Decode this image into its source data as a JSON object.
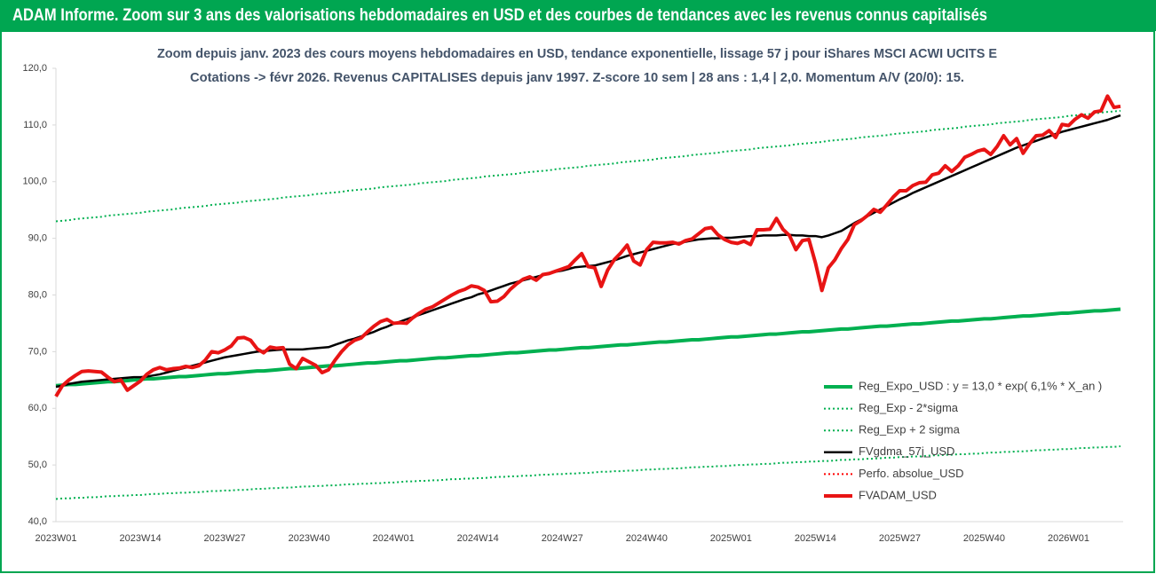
{
  "chart_data": {
    "type": "line",
    "title": "ADAM Informe. Zoom sur 3 ans des valorisations hebdomadaires en USD et des courbes de tendances avec les revenus connus capitalisés",
    "subtitle": [
      "Zoom depuis janv. 2023 des cours moyens hebdomadaires en USD, tendance exponentielle, lissage 57 j pour iShares MSCI ACWI UCITS E",
      "Cotations -> févr 2026. Revenus CAPITALISES depuis janv 1997. Z-score 10 sem | 28 ans : 1,4 | 2,0. Momentum A/V (20/0): 15."
    ],
    "categories": [
      "2023W01",
      null,
      null,
      null,
      null,
      null,
      null,
      null,
      null,
      null,
      null,
      null,
      null,
      "2023W14",
      null,
      null,
      null,
      null,
      null,
      null,
      null,
      null,
      null,
      null,
      null,
      null,
      "2023W27",
      null,
      null,
      null,
      null,
      null,
      null,
      null,
      null,
      null,
      null,
      null,
      null,
      "2023W40",
      null,
      null,
      null,
      null,
      null,
      null,
      null,
      null,
      null,
      null,
      null,
      null,
      "2024W01",
      null,
      null,
      null,
      null,
      null,
      null,
      null,
      null,
      null,
      null,
      null,
      null,
      "2024W14",
      null,
      null,
      null,
      null,
      null,
      null,
      null,
      null,
      null,
      null,
      null,
      null,
      "2024W27",
      null,
      null,
      null,
      null,
      null,
      null,
      null,
      null,
      null,
      null,
      null,
      null,
      "2024W40",
      null,
      null,
      null,
      null,
      null,
      null,
      null,
      null,
      null,
      null,
      null,
      null,
      "2025W01",
      null,
      null,
      null,
      null,
      null,
      null,
      null,
      null,
      null,
      null,
      null,
      null,
      "2025W14",
      null,
      null,
      null,
      null,
      null,
      null,
      null,
      null,
      null,
      null,
      null,
      null,
      "2025W27",
      null,
      null,
      null,
      null,
      null,
      null,
      null,
      null,
      null,
      null,
      null,
      null,
      "2025W40",
      null,
      null,
      null,
      null,
      null,
      null,
      null,
      null,
      null,
      null,
      null,
      null,
      "2026W01",
      null,
      null,
      null,
      null,
      null,
      null,
      null,
      null
    ],
    "ylim": [
      40,
      120
    ],
    "yticks": [
      {
        "value": 40,
        "label": "40,0"
      },
      {
        "value": 50,
        "label": "50,0"
      },
      {
        "value": 60,
        "label": "60,0"
      },
      {
        "value": 70,
        "label": "70,0"
      },
      {
        "value": 80,
        "label": "80,0"
      },
      {
        "value": 90,
        "label": "90,0"
      },
      {
        "value": 100,
        "label": "100,0"
      },
      {
        "value": 110,
        "label": "110,0"
      },
      {
        "value": 120,
        "label": "120,0"
      }
    ],
    "grid": false,
    "legend": "bottom-right",
    "series": [
      {
        "name": "Reg_Expo_USD : y = 13,0 * exp( 6,1% *  X_an )",
        "color": "#00b050",
        "style": "thick",
        "values": [
          64.0,
          64.1,
          64.2,
          64.2,
          64.3,
          64.4,
          64.5,
          64.6,
          64.7,
          64.7,
          64.8,
          64.9,
          65.0,
          65.1,
          65.2,
          65.2,
          65.3,
          65.4,
          65.5,
          65.6,
          65.6,
          65.7,
          65.8,
          65.9,
          66.0,
          66.1,
          66.1,
          66.2,
          66.3,
          66.4,
          66.5,
          66.6,
          66.6,
          66.7,
          66.8,
          66.9,
          67.0,
          67.0,
          67.1,
          67.2,
          67.3,
          67.4,
          67.5,
          67.5,
          67.6,
          67.7,
          67.8,
          67.9,
          68.0,
          68.0,
          68.1,
          68.2,
          68.3,
          68.4,
          68.4,
          68.5,
          68.6,
          68.7,
          68.8,
          68.9,
          68.9,
          69.0,
          69.1,
          69.2,
          69.3,
          69.3,
          69.4,
          69.5,
          69.6,
          69.7,
          69.8,
          69.8,
          69.9,
          70.0,
          70.1,
          70.2,
          70.3,
          70.3,
          70.4,
          70.5,
          70.6,
          70.7,
          70.7,
          70.8,
          70.9,
          71.0,
          71.1,
          71.2,
          71.2,
          71.3,
          71.4,
          71.5,
          71.6,
          71.7,
          71.7,
          71.8,
          71.9,
          72.0,
          72.1,
          72.1,
          72.2,
          72.3,
          72.4,
          72.5,
          72.6,
          72.6,
          72.7,
          72.8,
          72.9,
          73.0,
          73.1,
          73.1,
          73.2,
          73.3,
          73.4,
          73.5,
          73.5,
          73.6,
          73.7,
          73.8,
          73.9,
          74.0,
          74.0,
          74.1,
          74.2,
          74.3,
          74.4,
          74.5,
          74.5,
          74.6,
          74.7,
          74.8,
          74.9,
          74.9,
          75.0,
          75.1,
          75.2,
          75.3,
          75.4,
          75.4,
          75.5,
          75.6,
          75.7,
          75.8,
          75.8,
          75.9,
          76.0,
          76.1,
          76.2,
          76.3,
          76.3,
          76.4,
          76.5,
          76.6,
          76.7,
          76.8,
          76.8,
          76.9,
          77.0,
          77.1,
          77.2,
          77.2,
          77.3,
          77.4,
          77.5
        ]
      },
      {
        "name": "Reg_Exp - 2*sigma",
        "color": "#00b050",
        "style": "dotted",
        "values": [
          44.0,
          44.1,
          44.1,
          44.2,
          44.2,
          44.3,
          44.3,
          44.4,
          44.5,
          44.5,
          44.6,
          44.6,
          44.7,
          44.7,
          44.8,
          44.9,
          44.9,
          45.0,
          45.0,
          45.1,
          45.1,
          45.2,
          45.2,
          45.3,
          45.4,
          45.4,
          45.5,
          45.5,
          45.6,
          45.6,
          45.7,
          45.8,
          45.8,
          45.9,
          45.9,
          46.0,
          46.0,
          46.1,
          46.2,
          46.2,
          46.3,
          46.3,
          46.4,
          46.4,
          46.5,
          46.6,
          46.6,
          46.7,
          46.7,
          46.8,
          46.8,
          46.9,
          46.9,
          47.0,
          47.1,
          47.1,
          47.2,
          47.2,
          47.3,
          47.3,
          47.4,
          47.5,
          47.5,
          47.6,
          47.6,
          47.7,
          47.7,
          47.8,
          47.9,
          47.9,
          48.0,
          48.0,
          48.1,
          48.1,
          48.2,
          48.3,
          48.3,
          48.4,
          48.4,
          48.5,
          48.5,
          48.6,
          48.6,
          48.7,
          48.8,
          48.8,
          48.9,
          48.9,
          49.0,
          49.0,
          49.1,
          49.2,
          49.2,
          49.3,
          49.3,
          49.4,
          49.4,
          49.5,
          49.6,
          49.6,
          49.7,
          49.7,
          49.8,
          49.8,
          49.9,
          50.0,
          50.0,
          50.1,
          50.1,
          50.2,
          50.2,
          50.3,
          50.4,
          50.4,
          50.5,
          50.5,
          50.6,
          50.6,
          50.7,
          50.7,
          50.8,
          50.9,
          50.9,
          51.0,
          51.0,
          51.1,
          51.1,
          51.2,
          51.3,
          51.3,
          51.4,
          51.4,
          51.5,
          51.5,
          51.6,
          51.7,
          51.7,
          51.8,
          51.8,
          51.9,
          51.9,
          52.0,
          52.0,
          52.1,
          52.2,
          52.2,
          52.3,
          52.3,
          52.4,
          52.4,
          52.5,
          52.6,
          52.6,
          52.7,
          52.7,
          52.8,
          52.8,
          52.9,
          53.0,
          53.0,
          53.1,
          53.1,
          53.2,
          53.2,
          53.3
        ]
      },
      {
        "name": "Reg_Exp + 2 sigma",
        "color": "#00b050",
        "style": "dotted",
        "values": [
          93.0,
          93.1,
          93.2,
          93.4,
          93.5,
          93.6,
          93.7,
          93.8,
          94.0,
          94.1,
          94.2,
          94.3,
          94.4,
          94.5,
          94.7,
          94.8,
          94.9,
          95.0,
          95.1,
          95.3,
          95.4,
          95.5,
          95.6,
          95.7,
          95.9,
          96.0,
          96.1,
          96.2,
          96.3,
          96.5,
          96.6,
          96.7,
          96.8,
          96.9,
          97.0,
          97.2,
          97.3,
          97.4,
          97.5,
          97.6,
          97.8,
          97.9,
          98.0,
          98.1,
          98.2,
          98.4,
          98.5,
          98.6,
          98.7,
          98.8,
          99.0,
          99.1,
          99.2,
          99.3,
          99.4,
          99.5,
          99.7,
          99.8,
          99.9,
          100.0,
          100.1,
          100.3,
          100.4,
          100.5,
          100.6,
          100.7,
          100.9,
          101.0,
          101.1,
          101.2,
          101.3,
          101.4,
          101.6,
          101.7,
          101.8,
          101.9,
          102.0,
          102.2,
          102.3,
          102.4,
          102.5,
          102.6,
          102.8,
          102.9,
          103.0,
          103.1,
          103.2,
          103.4,
          103.5,
          103.6,
          103.7,
          103.8,
          103.9,
          104.1,
          104.2,
          104.3,
          104.4,
          104.5,
          104.7,
          104.8,
          104.9,
          105.0,
          105.1,
          105.3,
          105.4,
          105.5,
          105.6,
          105.7,
          105.9,
          106.0,
          106.1,
          106.2,
          106.3,
          106.4,
          106.6,
          106.7,
          106.8,
          106.9,
          107.0,
          107.2,
          107.3,
          107.4,
          107.5,
          107.6,
          107.8,
          107.9,
          108.0,
          108.1,
          108.2,
          108.4,
          108.5,
          108.6,
          108.7,
          108.8,
          108.9,
          109.1,
          109.2,
          109.3,
          109.4,
          109.5,
          109.7,
          109.8,
          109.9,
          110.0,
          110.1,
          110.3,
          110.4,
          110.5,
          110.6,
          110.7,
          110.9,
          111.0,
          111.1,
          111.2,
          111.3,
          111.4,
          111.6,
          111.7,
          111.8,
          111.9,
          112.0,
          112.2,
          112.3,
          112.4,
          112.5
        ]
      },
      {
        "name": "FVgdma_57j_USD",
        "color": "#000000",
        "style": "solid",
        "values": [
          63.8,
          64.0,
          64.3,
          64.5,
          64.7,
          64.8,
          64.9,
          65.0,
          65.1,
          65.2,
          65.3,
          65.4,
          65.5,
          65.5,
          65.6,
          65.8,
          66.0,
          66.3,
          66.6,
          66.9,
          67.2,
          67.5,
          67.8,
          68.1,
          68.4,
          68.7,
          69.0,
          69.2,
          69.4,
          69.6,
          69.8,
          70.0,
          70.1,
          70.2,
          70.3,
          70.4,
          70.4,
          70.4,
          70.4,
          70.5,
          70.6,
          70.7,
          70.8,
          71.2,
          71.6,
          72.0,
          72.3,
          72.7,
          73.1,
          73.5,
          74.0,
          74.4,
          74.9,
          75.3,
          75.7,
          76.1,
          76.5,
          76.9,
          77.3,
          77.7,
          78.1,
          78.5,
          78.9,
          79.3,
          79.6,
          80.1,
          80.4,
          80.8,
          81.2,
          81.6,
          82.0,
          82.3,
          82.6,
          82.9,
          83.2,
          83.5,
          83.8,
          84.1,
          84.3,
          84.6,
          84.9,
          85.0,
          85.1,
          85.2,
          85.5,
          85.8,
          86.1,
          86.5,
          86.9,
          87.2,
          87.5,
          87.8,
          88.1,
          88.4,
          88.7,
          89.0,
          89.2,
          89.4,
          89.6,
          89.8,
          89.9,
          90.0,
          90.0,
          90.1,
          90.1,
          90.2,
          90.3,
          90.4,
          90.4,
          90.5,
          90.5,
          90.5,
          90.6,
          90.6,
          90.5,
          90.5,
          90.4,
          90.4,
          90.2,
          90.5,
          90.9,
          91.3,
          92.0,
          92.7,
          93.3,
          93.9,
          94.5,
          95.1,
          95.7,
          96.3,
          96.9,
          97.4,
          98.0,
          98.5,
          99.0,
          99.5,
          100.0,
          100.5,
          101.0,
          101.5,
          102.0,
          102.5,
          103.0,
          103.5,
          104.0,
          104.5,
          105.0,
          105.5,
          106.0,
          106.4,
          106.8,
          107.2,
          107.6,
          108.0,
          108.4,
          108.8,
          109.1,
          109.4,
          109.7,
          110.0,
          110.3,
          110.6,
          110.9,
          111.3,
          111.7
        ]
      },
      {
        "name": "Perfo. absolue_USD",
        "color": "#ff0000",
        "style": "dotted"
      },
      {
        "name": "FVADAM_USD",
        "color": "#e81414",
        "style": "thick",
        "values": [
          62.1,
          64.0,
          65.0,
          65.8,
          66.5,
          66.6,
          66.5,
          66.4,
          65.5,
          64.7,
          65.0,
          63.2,
          64.0,
          64.8,
          66.0,
          66.8,
          67.2,
          66.8,
          67.0,
          67.1,
          67.4,
          67.2,
          67.5,
          68.5,
          70.0,
          69.8,
          70.3,
          71.0,
          72.4,
          72.5,
          72.0,
          70.5,
          69.8,
          70.8,
          70.6,
          70.7,
          67.8,
          67.0,
          68.8,
          68.2,
          67.6,
          66.3,
          66.8,
          68.5,
          70.0,
          71.2,
          72.0,
          72.4,
          73.5,
          74.5,
          75.3,
          75.7,
          75.0,
          75.1,
          75.0,
          76.0,
          76.8,
          77.5,
          77.9,
          78.6,
          79.3,
          80.0,
          80.6,
          81.0,
          81.6,
          81.4,
          80.8,
          78.8,
          78.9,
          79.7,
          81.0,
          82.0,
          82.8,
          83.2,
          82.6,
          83.6,
          83.8,
          84.2,
          84.6,
          85.0,
          86.2,
          87.3,
          85.0,
          84.8,
          81.5,
          84.4,
          86.2,
          87.4,
          88.8,
          86.0,
          85.3,
          88.0,
          89.3,
          89.2,
          89.2,
          89.3,
          89.0,
          89.6,
          89.9,
          90.8,
          91.7,
          91.9,
          90.6,
          89.8,
          89.3,
          89.1,
          89.5,
          88.9,
          91.5,
          91.5,
          91.6,
          93.5,
          91.6,
          90.5,
          88.0,
          89.6,
          89.8,
          85.7,
          80.8,
          84.8,
          86.2,
          88.2,
          89.8,
          92.4,
          93.1,
          94.0,
          95.1,
          94.6,
          95.9,
          97.3,
          98.4,
          98.4,
          99.3,
          99.8,
          99.9,
          101.2,
          101.5,
          102.8,
          101.8,
          102.8,
          104.3,
          104.8,
          105.4,
          105.7,
          104.8,
          106.2,
          108.1,
          106.5,
          107.6,
          105.0,
          106.7,
          108.1,
          108.2,
          109.0,
          107.8,
          110.1,
          109.9,
          111.0,
          111.8,
          111.2,
          112.3,
          112.5,
          115.1,
          113.1,
          113.3
        ]
      }
    ]
  }
}
